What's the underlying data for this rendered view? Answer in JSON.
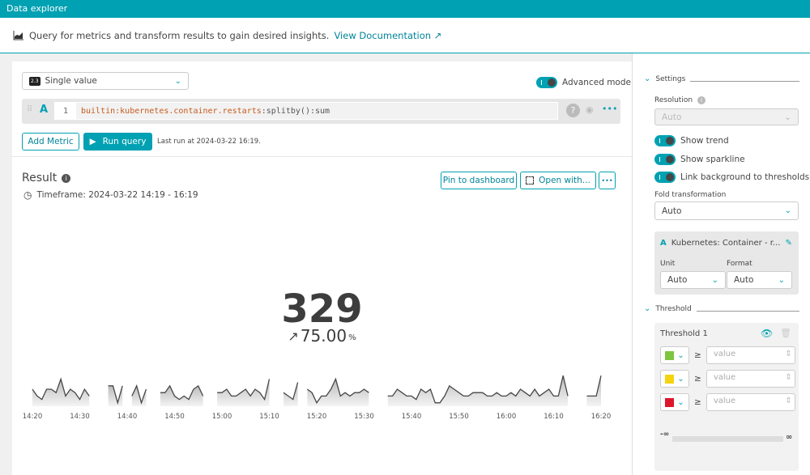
{
  "topbar": {
    "title": "Data explorer"
  },
  "description": {
    "text": "Query for metrics and transform results to gain desired insights.",
    "link": "View Documentation",
    "icon": "area-chart-icon"
  },
  "query": {
    "visualization": "Single value",
    "visualization_icon": "2.3",
    "advanced_mode_label": "Advanced mode",
    "advanced_mode": true,
    "letter": "A",
    "line_number": "1",
    "metric": "builtin:kubernetes.container.restarts",
    "transform": ":splitby():sum",
    "add_metric": "Add Metric",
    "run_query": "Run query",
    "last_run": "Last run at 2024-03-22 16:19."
  },
  "result": {
    "title": "Result",
    "timeframe": "Timeframe: 2024-03-22 14:19 - 16:19",
    "pin": "Pin to dashboard",
    "open_with": "Open with...",
    "more": "•••",
    "value": "329",
    "trend_arrow": "↗",
    "trend_value": "75.00",
    "trend_unit": "%"
  },
  "chart_data": {
    "type": "area",
    "x_start": "14:20",
    "x_end": "16:20",
    "interval_minutes": 1,
    "values": [
      5,
      3,
      2,
      5,
      5,
      4,
      8,
      3,
      5,
      4,
      2,
      5,
      3,
      null,
      null,
      null,
      6,
      6,
      1,
      6,
      null,
      3,
      6,
      1,
      5,
      null,
      null,
      4,
      4,
      6,
      3,
      2,
      3,
      2,
      5,
      6,
      3,
      null,
      null,
      4,
      4,
      5,
      3,
      3,
      4,
      5,
      3,
      5,
      4,
      2,
      8,
      null,
      null,
      4,
      3,
      2,
      7,
      null,
      5,
      4,
      1,
      3,
      3,
      5,
      8,
      3,
      4,
      3,
      4,
      4,
      5,
      4,
      null,
      null,
      null,
      3,
      3,
      5,
      4,
      3,
      3,
      2,
      5,
      4,
      5,
      1,
      1,
      3,
      6,
      5,
      4,
      3,
      3,
      4,
      4,
      4,
      3,
      3,
      4,
      3,
      3,
      4,
      3,
      5,
      4,
      3,
      5,
      3,
      4,
      5,
      3,
      3,
      9,
      3,
      null,
      null,
      null,
      3,
      3,
      3,
      9
    ],
    "x_ticks": [
      "14:20",
      "14:30",
      "14:40",
      "14:50",
      "15:00",
      "15:10",
      "15:20",
      "15:30",
      "15:40",
      "15:50",
      "16:00",
      "16:10",
      "16:20"
    ]
  },
  "settings": {
    "title": "Settings",
    "resolution_label": "Resolution",
    "resolution": "Auto",
    "toggles": [
      {
        "label": "Show trend",
        "on": true
      },
      {
        "label": "Show sparkline",
        "on": true
      },
      {
        "label": "Link background to thresholds",
        "on": true
      }
    ],
    "fold_label": "Fold transformation",
    "fold": "Auto",
    "metric_letter": "A",
    "metric_name": "Kubernetes: Container - r...",
    "unit_label": "Unit",
    "unit": "Auto",
    "format_label": "Format",
    "format": "Auto"
  },
  "threshold": {
    "title": "Threshold",
    "name": "Threshold 1",
    "rows": [
      {
        "color": "#7dc540",
        "op": "≥",
        "placeholder": "value"
      },
      {
        "color": "#f5d30f",
        "op": "≥",
        "placeholder": "value"
      },
      {
        "color": "#dc172a",
        "op": "≥",
        "placeholder": "value"
      }
    ],
    "min_label": "-∞",
    "max_label": "∞"
  },
  "colors": {
    "accent": "#00a1b2",
    "metric": "#c75a1c"
  }
}
